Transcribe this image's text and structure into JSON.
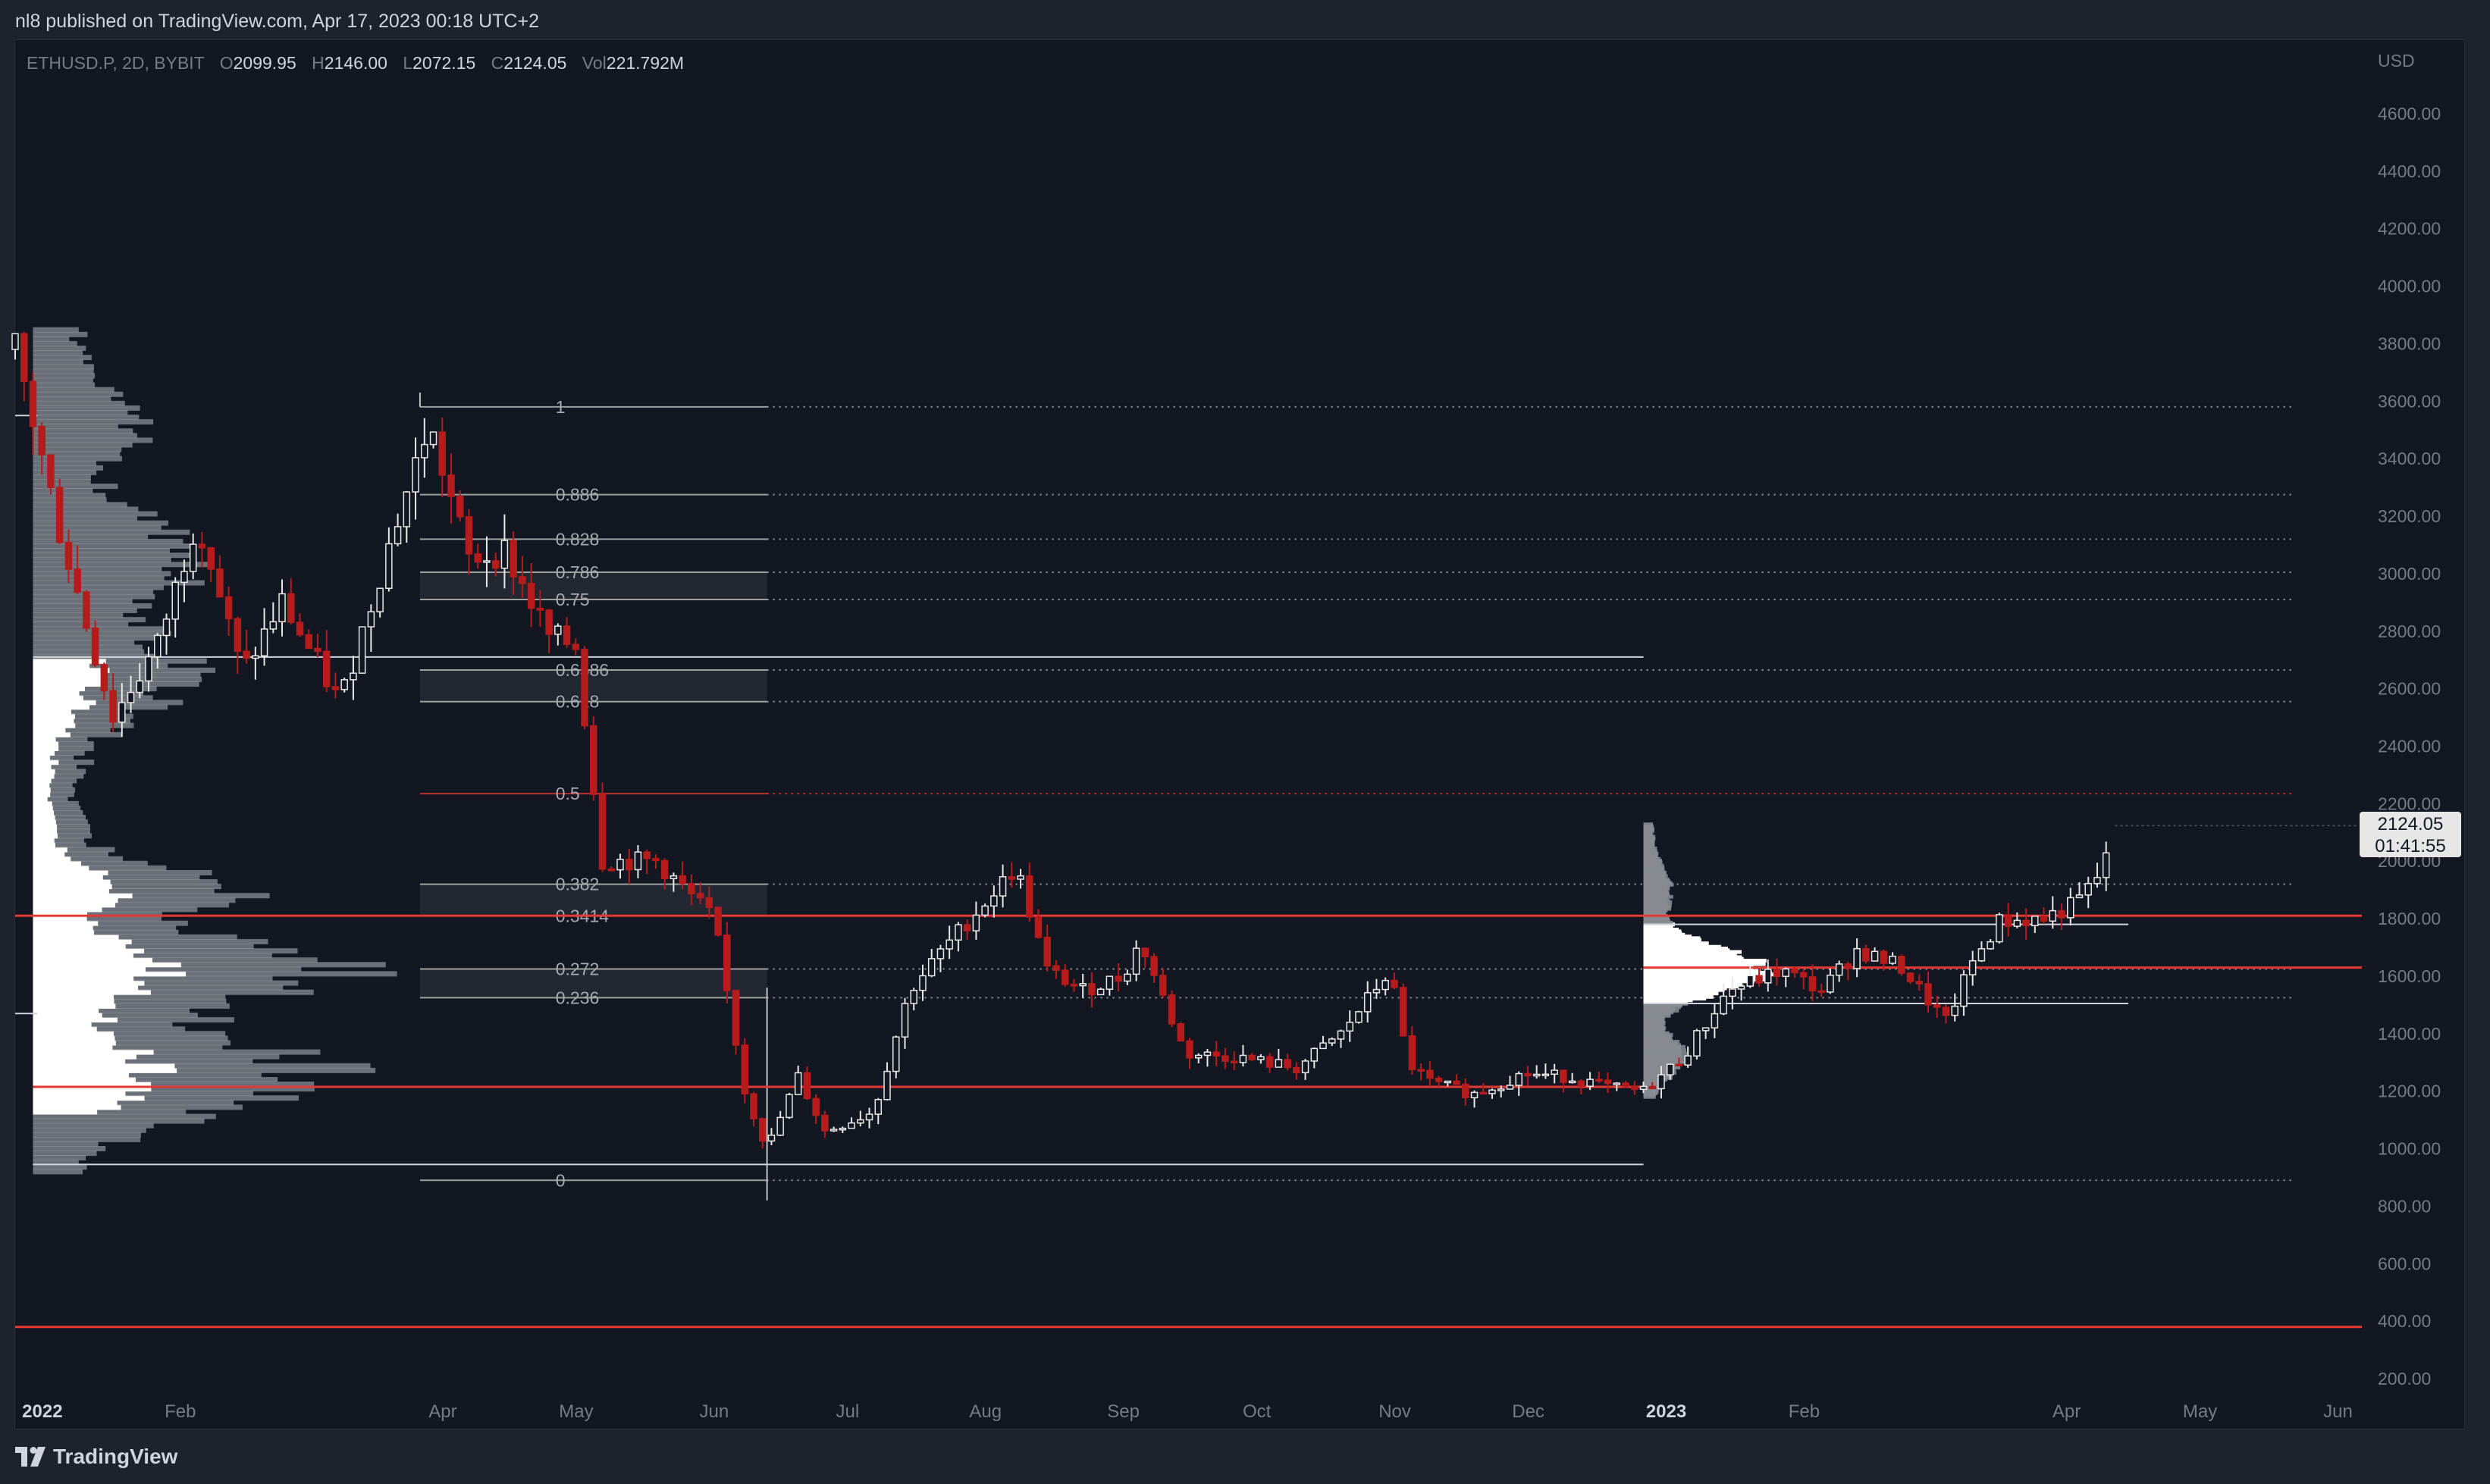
{
  "header": {
    "publisher_text": "nl8 published on TradingView.com, Apr 17, 2023 00:18 UTC+2"
  },
  "legend": {
    "symbol": "ETHUSD.P, 2D, BYBIT",
    "open_label": "O",
    "open": "2099.95",
    "high_label": "H",
    "high": "2146.00",
    "low_label": "L",
    "low": "2072.15",
    "close_label": "C",
    "close": "2124.05",
    "vol_label": "Vol",
    "vol": "221.792M"
  },
  "price_tag": {
    "price": "2124.05",
    "countdown": "01:41:55"
  },
  "footer": {
    "brand": "TradingView",
    "logo_icon": "tradingview-logo-icon"
  },
  "colors": {
    "background": "#131722",
    "frame": "#1e222d",
    "up_candle": "#e8e8e8",
    "down_candle": "#b71c1c",
    "key_level": "#e53935",
    "fib_line": "#c0c0c0",
    "volume_profile": "#8a8d94",
    "value_area": "#ffffff"
  },
  "chart_data": {
    "type": "candlestick",
    "title": "",
    "currency_label": "USD",
    "y_ticks": [
      "200.00",
      "400.00",
      "600.00",
      "800.00",
      "1000.00",
      "1200.00",
      "1400.00",
      "1600.00",
      "1800.00",
      "2000.00",
      "2200.00",
      "2400.00",
      "2600.00",
      "2800.00",
      "3000.00",
      "3200.00",
      "3400.00",
      "3600.00",
      "3800.00",
      "4000.00",
      "4200.00",
      "4400.00",
      "4600.00"
    ],
    "ylim": [
      80,
      4800
    ],
    "x_ticks": [
      {
        "label": "2022",
        "date": "2022-01-01",
        "bold": true
      },
      {
        "label": "Feb",
        "date": "2022-02-01"
      },
      {
        "label": "Apr",
        "date": "2022-04-01"
      },
      {
        "label": "May",
        "date": "2022-05-01"
      },
      {
        "label": "Jun",
        "date": "2022-06-01"
      },
      {
        "label": "Jul",
        "date": "2022-07-01"
      },
      {
        "label": "Aug",
        "date": "2022-08-01"
      },
      {
        "label": "Sep",
        "date": "2022-09-01"
      },
      {
        "label": "Oct",
        "date": "2022-10-01"
      },
      {
        "label": "Nov",
        "date": "2022-11-01"
      },
      {
        "label": "Dec",
        "date": "2022-12-01"
      },
      {
        "label": "2023",
        "date": "2023-01-01",
        "bold": true
      },
      {
        "label": "Feb",
        "date": "2023-02-01"
      },
      {
        "label": "Apr",
        "date": "2023-04-01"
      },
      {
        "label": "May",
        "date": "2023-05-01"
      },
      {
        "label": "Jun",
        "date": "2023-06-01"
      }
    ],
    "anchors": [
      [
        "2021-12-31",
        3780
      ],
      [
        "2022-01-10",
        3150
      ],
      [
        "2022-01-22",
        2500
      ],
      [
        "2022-02-01",
        2750
      ],
      [
        "2022-02-10",
        3200
      ],
      [
        "2022-02-20",
        2650
      ],
      [
        "2022-03-01",
        2900
      ],
      [
        "2022-03-14",
        2550
      ],
      [
        "2022-03-24",
        3050
      ],
      [
        "2022-04-03",
        3520
      ],
      [
        "2022-04-12",
        3050
      ],
      [
        "2022-04-20",
        3080
      ],
      [
        "2022-04-30",
        2780
      ],
      [
        "2022-05-06",
        2750
      ],
      [
        "2022-05-12",
        2000
      ],
      [
        "2022-05-24",
        2000
      ],
      [
        "2022-06-06",
        1800
      ],
      [
        "2022-06-13",
        1200
      ],
      [
        "2022-06-18",
        1000
      ],
      [
        "2022-06-25",
        1250
      ],
      [
        "2022-07-01",
        1060
      ],
      [
        "2022-07-12",
        1130
      ],
      [
        "2022-07-20",
        1550
      ],
      [
        "2022-07-28",
        1700
      ],
      [
        "2022-08-13",
        1980
      ],
      [
        "2022-08-20",
        1620
      ],
      [
        "2022-08-28",
        1550
      ],
      [
        "2022-09-06",
        1600
      ],
      [
        "2022-09-10",
        1720
      ],
      [
        "2022-09-20",
        1330
      ],
      [
        "2022-10-01",
        1320
      ],
      [
        "2022-10-15",
        1280
      ],
      [
        "2022-10-25",
        1400
      ],
      [
        "2022-11-05",
        1620
      ],
      [
        "2022-11-09",
        1300
      ],
      [
        "2022-11-14",
        1230
      ],
      [
        "2022-11-24",
        1190
      ],
      [
        "2022-12-05",
        1260
      ],
      [
        "2022-12-15",
        1250
      ],
      [
        "2022-12-25",
        1210
      ],
      [
        "2023-01-01",
        1200
      ],
      [
        "2023-01-10",
        1320
      ],
      [
        "2023-01-20",
        1550
      ],
      [
        "2023-02-01",
        1620
      ],
      [
        "2023-02-10",
        1550
      ],
      [
        "2023-02-18",
        1690
      ],
      [
        "2023-02-28",
        1630
      ],
      [
        "2023-03-10",
        1440
      ],
      [
        "2023-03-16",
        1650
      ],
      [
        "2023-03-22",
        1790
      ],
      [
        "2023-04-01",
        1800
      ],
      [
        "2023-04-08",
        1850
      ],
      [
        "2023-04-13",
        1940
      ],
      [
        "2023-04-17",
        2124
      ]
    ],
    "fibonacci": {
      "start_date": "2022-04-01",
      "end_date": "2022-06-18",
      "levels": [
        {
          "label": "1",
          "price": 3580
        },
        {
          "label": "0.886",
          "price": 3275
        },
        {
          "label": "0.828",
          "price": 3120
        },
        {
          "label": "0.786",
          "price": 3005
        },
        {
          "label": "0.75",
          "price": 2910
        },
        {
          "label": "0.6586",
          "price": 2665
        },
        {
          "label": "0.618",
          "price": 2555
        },
        {
          "label": "0.5",
          "price": 2235
        },
        {
          "label": "0.382",
          "price": 1920
        },
        {
          "label": "0.3414",
          "price": 1810
        },
        {
          "label": "0.272",
          "price": 1625
        },
        {
          "label": "0.236",
          "price": 1525
        },
        {
          "label": "0",
          "price": 890
        }
      ],
      "shaded_bands": [
        [
          2910,
          3005
        ],
        [
          2555,
          2665
        ],
        [
          1810,
          1920
        ],
        [
          1525,
          1625
        ]
      ]
    },
    "horizontal_levels": [
      {
        "price": 1810,
        "color": "#e53935",
        "extent": "full"
      },
      {
        "price": 1630,
        "color": "#e53935",
        "extent": "2023"
      },
      {
        "price": 1215,
        "color": "#e53935",
        "extent": "2022"
      },
      {
        "price": 380,
        "color": "#e53935",
        "extent": "full"
      },
      {
        "price": 2710,
        "color": "#d1d4dc",
        "extent": "2022"
      },
      {
        "price": 945,
        "color": "#d1d4dc",
        "extent": "2022"
      },
      {
        "price": 1780,
        "color": "#d1d4dc",
        "extent": "2023"
      },
      {
        "price": 1505,
        "color": "#d1d4dc",
        "extent": "2023"
      }
    ]
  }
}
